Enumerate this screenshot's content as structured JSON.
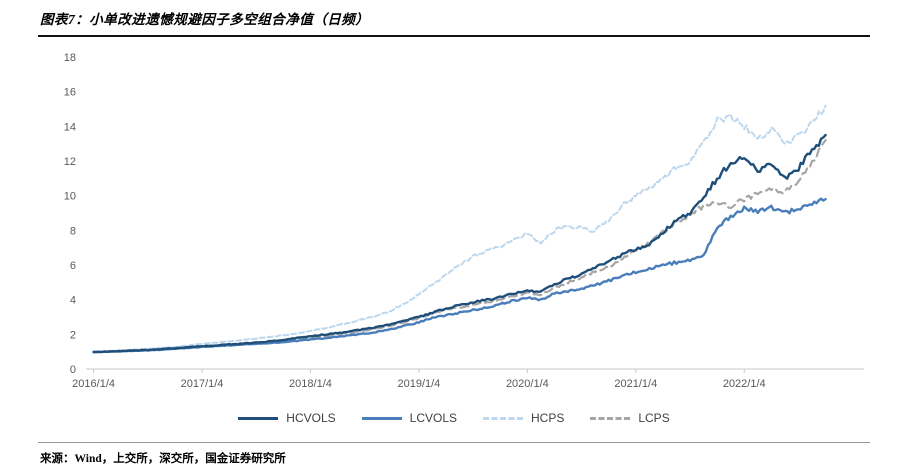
{
  "header": {
    "title": "图表7：小单改进遗憾规避因子多空组合净值（日频）"
  },
  "footer": {
    "source": "来源：Wind，上交所，深交所，国金证券研究所"
  },
  "chart_data": {
    "type": "line",
    "title": "小单改进遗憾规避因子多空组合净值（日频）",
    "xlabel": "",
    "ylabel": "",
    "ylim": [
      0,
      18
    ],
    "y_ticks": [
      0,
      2,
      4,
      6,
      8,
      10,
      12,
      14,
      16,
      18
    ],
    "x_range": [
      2015.93,
      2022.92
    ],
    "x_ticks": [
      "2016/1/4",
      "2017/1/4",
      "2018/1/4",
      "2019/1/4",
      "2020/1/4",
      "2021/1/4",
      "2022/1/4"
    ],
    "x_tick_positions": [
      2016,
      2017,
      2018,
      2019,
      2020,
      2021,
      2022
    ],
    "grid": false,
    "legend_position": "bottom",
    "axis_color": "#c9c9c9",
    "tick_label_color": "#595959",
    "x": [
      2016,
      2016.125,
      2016.25,
      2016.375,
      2016.5,
      2016.625,
      2016.75,
      2016.875,
      2017,
      2017.125,
      2017.25,
      2017.375,
      2017.5,
      2017.625,
      2017.75,
      2017.875,
      2018,
      2018.125,
      2018.25,
      2018.375,
      2018.5,
      2018.625,
      2018.75,
      2018.875,
      2019,
      2019.125,
      2019.25,
      2019.375,
      2019.5,
      2019.625,
      2019.75,
      2019.875,
      2020,
      2020.125,
      2020.25,
      2020.375,
      2020.5,
      2020.625,
      2020.75,
      2020.875,
      2021,
      2021.125,
      2021.25,
      2021.375,
      2021.5,
      2021.625,
      2021.75,
      2021.875,
      2022,
      2022.125,
      2022.25,
      2022.375,
      2022.5,
      2022.625,
      2022.75
    ],
    "series": [
      {
        "name": "HCVOLS",
        "color": "#1f4e79",
        "dash": null,
        "width": 2.4,
        "values": [
          0.98,
          1.0,
          1.03,
          1.07,
          1.1,
          1.15,
          1.2,
          1.26,
          1.32,
          1.36,
          1.42,
          1.47,
          1.52,
          1.6,
          1.68,
          1.78,
          1.9,
          1.98,
          2.08,
          2.18,
          2.3,
          2.42,
          2.58,
          2.78,
          3.0,
          3.25,
          3.5,
          3.7,
          3.85,
          4.0,
          4.15,
          4.35,
          4.55,
          4.45,
          4.9,
          5.2,
          5.5,
          5.9,
          6.2,
          6.6,
          6.9,
          7.2,
          7.9,
          8.6,
          9.0,
          9.9,
          11.0,
          11.9,
          12.2,
          11.4,
          11.9,
          11.0,
          11.6,
          12.6,
          13.5
        ]
      },
      {
        "name": "LCVOLS",
        "color": "#4a7ebb",
        "dash": null,
        "width": 2.4,
        "values": [
          0.98,
          1.0,
          1.02,
          1.05,
          1.08,
          1.12,
          1.16,
          1.22,
          1.28,
          1.32,
          1.36,
          1.4,
          1.45,
          1.5,
          1.56,
          1.62,
          1.7,
          1.78,
          1.86,
          1.95,
          2.05,
          2.15,
          2.3,
          2.5,
          2.7,
          2.95,
          3.1,
          3.25,
          3.4,
          3.55,
          3.75,
          3.95,
          4.1,
          4.0,
          4.35,
          4.5,
          4.65,
          4.85,
          5.1,
          5.35,
          5.6,
          5.8,
          6.0,
          6.15,
          6.3,
          6.5,
          8.2,
          8.8,
          9.3,
          9.1,
          9.3,
          9.0,
          9.3,
          9.5,
          9.8
        ]
      },
      {
        "name": "HCPS",
        "color": "#bdd7ee",
        "dash": "5 3",
        "width": 2.0,
        "values": [
          1.0,
          1.03,
          1.07,
          1.12,
          1.17,
          1.22,
          1.28,
          1.36,
          1.45,
          1.52,
          1.6,
          1.68,
          1.76,
          1.85,
          1.95,
          2.06,
          2.2,
          2.35,
          2.52,
          2.7,
          2.9,
          3.1,
          3.4,
          3.8,
          4.3,
          4.9,
          5.4,
          6.0,
          6.5,
          6.8,
          7.1,
          7.4,
          7.8,
          7.3,
          8.0,
          8.3,
          8.1,
          8.0,
          8.6,
          9.4,
          10.0,
          10.4,
          11.0,
          11.6,
          12.0,
          13.0,
          14.3,
          14.6,
          14.0,
          13.2,
          13.8,
          13.1,
          13.4,
          14.2,
          15.2
        ]
      },
      {
        "name": "LCPS",
        "color": "#a6a6a6",
        "dash": "8 5",
        "width": 2.2,
        "values": [
          0.98,
          1.0,
          1.02,
          1.05,
          1.09,
          1.13,
          1.18,
          1.24,
          1.3,
          1.34,
          1.39,
          1.44,
          1.5,
          1.57,
          1.64,
          1.72,
          1.82,
          1.9,
          2.0,
          2.1,
          2.22,
          2.35,
          2.52,
          2.7,
          2.95,
          3.2,
          3.4,
          3.55,
          3.7,
          3.85,
          4.0,
          4.2,
          4.4,
          4.3,
          4.7,
          5.0,
          5.3,
          5.6,
          5.9,
          6.4,
          6.9,
          7.3,
          7.9,
          8.5,
          8.9,
          9.4,
          9.6,
          9.4,
          9.8,
          10.1,
          10.4,
          10.2,
          10.8,
          11.9,
          13.2
        ]
      }
    ]
  }
}
